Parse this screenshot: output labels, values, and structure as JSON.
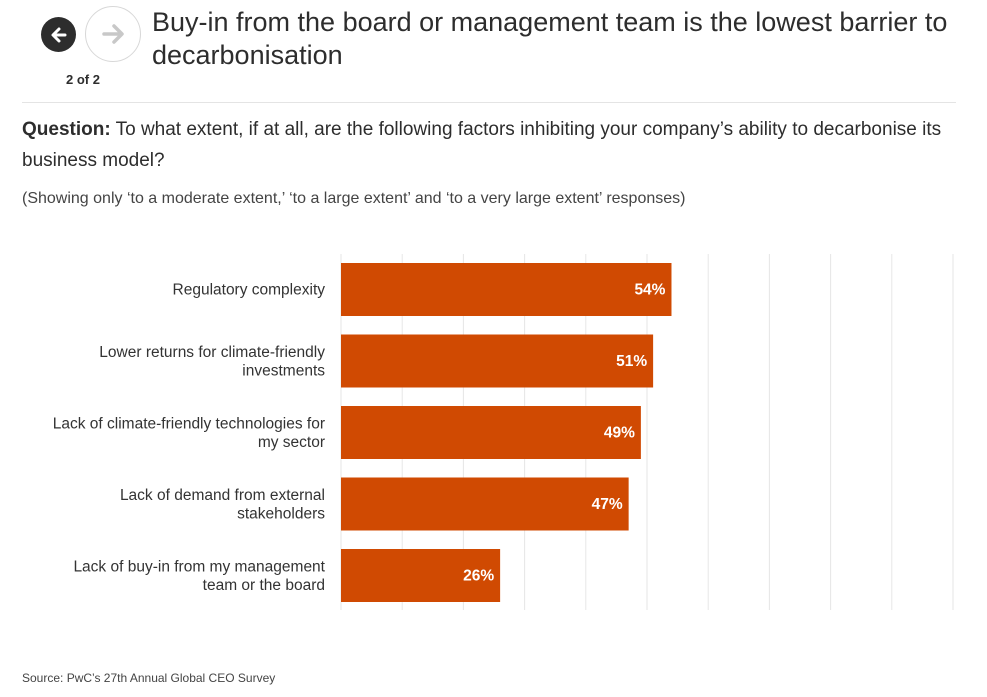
{
  "nav": {
    "prev_icon": "arrow-left-icon",
    "next_icon": "arrow-right-icon",
    "pager": "2 of 2"
  },
  "title": "Buy-in from the board or management team is the lowest barrier to decarbonisation",
  "question": {
    "label": "Question:",
    "text": " To what extent, if at all, are the following factors inhibiting your company’s ability to decarbonise its business model?"
  },
  "subnote": "(Showing only ‘to a moderate extent,’ ‘to a large extent’ and ‘to a very large extent’ responses)",
  "source": "Source: PwC’s 27th Annual Global CEO Survey",
  "colors": {
    "bar": "#d04a02",
    "grid": "#e6e6e6"
  },
  "chart_data": {
    "type": "bar",
    "orientation": "horizontal",
    "categories": [
      [
        "Regulatory complexity"
      ],
      [
        "Lower returns for climate-friendly",
        "investments"
      ],
      [
        "Lack of climate-friendly technologies for",
        "my sector"
      ],
      [
        "Lack of demand from external",
        "stakeholders"
      ],
      [
        "Lack of buy-in from my management",
        "team or the board"
      ]
    ],
    "values": [
      54,
      51,
      49,
      47,
      26
    ],
    "data_labels": [
      "54%",
      "51%",
      "49%",
      "47%",
      "26%"
    ],
    "xlim": [
      0,
      100
    ],
    "grid": true
  }
}
